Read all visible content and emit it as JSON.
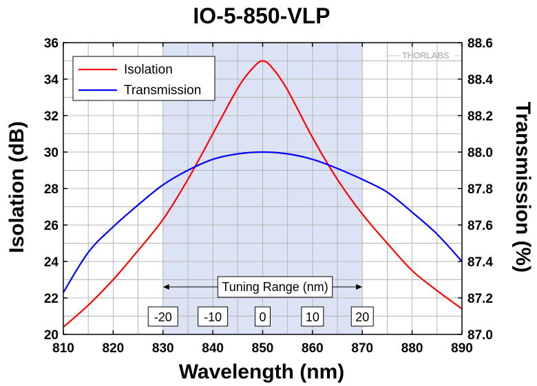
{
  "chart_data": {
    "type": "line",
    "title": "IO-5-850-VLP",
    "xlabel": "Wavelength (nm)",
    "ylabel": "Isolation (dB)",
    "y2label": "Transmission (%)",
    "xlim": [
      810,
      890
    ],
    "ylim": [
      20,
      36
    ],
    "y2lim": [
      87.0,
      88.6
    ],
    "xticks": [
      810,
      820,
      830,
      840,
      850,
      860,
      870,
      880,
      890
    ],
    "yticks": [
      20,
      22,
      24,
      26,
      28,
      30,
      32,
      34,
      36
    ],
    "y2ticks": [
      "87.0",
      "87.2",
      "87.4",
      "87.6",
      "87.8",
      "88.0",
      "88.2",
      "88.4",
      "88.6"
    ],
    "grid": true,
    "legend": "top-left",
    "shaded_band": [
      830,
      870
    ],
    "series": [
      {
        "name": "Isolation",
        "axis": "left",
        "color": "#ff0000",
        "x": [
          810,
          815,
          820,
          825,
          830,
          835,
          840,
          845,
          848,
          850,
          852,
          855,
          860,
          865,
          870,
          875,
          880,
          885,
          890
        ],
        "values": [
          20.4,
          21.6,
          23.0,
          24.6,
          26.3,
          28.5,
          31.0,
          33.5,
          34.6,
          35.0,
          34.6,
          33.4,
          30.8,
          28.5,
          26.6,
          25.0,
          23.5,
          22.4,
          21.4
        ]
      },
      {
        "name": "Transmission",
        "axis": "right",
        "color": "#0000ff",
        "x": [
          810,
          815,
          820,
          825,
          830,
          835,
          840,
          845,
          850,
          855,
          860,
          865,
          870,
          875,
          880,
          885,
          890
        ],
        "values": [
          87.23,
          87.45,
          87.59,
          87.71,
          87.82,
          87.9,
          87.96,
          87.99,
          88.0,
          87.99,
          87.96,
          87.91,
          87.85,
          87.78,
          87.67,
          87.55,
          87.4
        ]
      }
    ],
    "annotation": {
      "label": "Tuning Range (nm)",
      "ticks": [
        "-20",
        "-10",
        "0",
        "10",
        "20"
      ],
      "tick_x": [
        830,
        840,
        850,
        860,
        870
      ]
    }
  },
  "logo": "THORLABS",
  "colors": {
    "band": "#dce3f5",
    "grid": "#b4b4b4",
    "isolation": "#ff0000",
    "transmission": "#0000ff"
  }
}
